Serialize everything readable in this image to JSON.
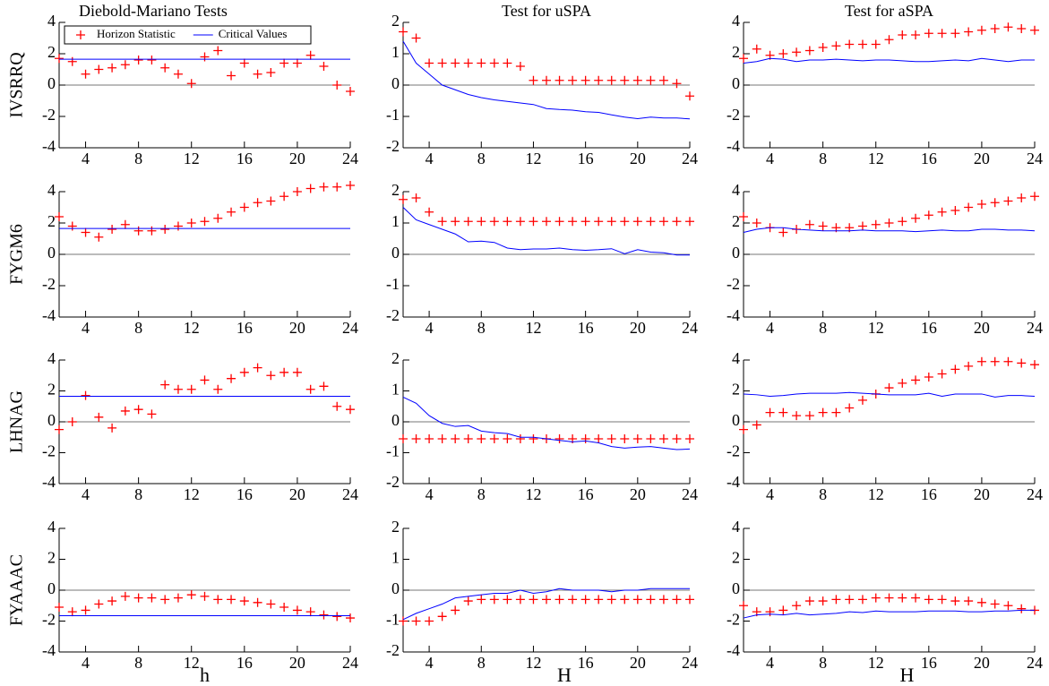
{
  "chart_data": [
    {
      "type": "scatter-line",
      "title": "Diebold-Mariano Tests",
      "ylabel": "IVSRRQ",
      "legend": "top-left",
      "x": [
        2,
        3,
        4,
        5,
        6,
        7,
        8,
        9,
        10,
        11,
        12,
        13,
        14,
        15,
        16,
        17,
        18,
        19,
        20,
        21,
        22,
        23,
        24
      ],
      "xlim": [
        2,
        24
      ],
      "xticks": [
        4,
        8,
        12,
        16,
        20,
        24
      ],
      "ylim": [
        -4,
        4
      ],
      "yticks": [
        -4,
        -2,
        0,
        2,
        4
      ],
      "series": [
        {
          "name": "Horizon Statistic",
          "color": "#ff0000",
          "values": [
            1.7,
            1.5,
            0.7,
            1.0,
            1.1,
            1.3,
            1.6,
            1.6,
            1.1,
            0.7,
            0.1,
            1.8,
            2.2,
            0.6,
            1.4,
            0.7,
            0.8,
            1.4,
            1.4,
            1.9,
            1.2,
            0.0,
            -0.4
          ]
        },
        {
          "name": "Critical Values",
          "color": "#0000ff",
          "values": [
            1.65,
            1.65,
            1.65,
            1.65,
            1.65,
            1.65,
            1.65,
            1.65,
            1.65,
            1.65,
            1.65,
            1.65,
            1.65,
            1.65,
            1.65,
            1.65,
            1.65,
            1.65,
            1.65,
            1.65,
            1.65,
            1.65,
            1.65
          ]
        }
      ]
    },
    {
      "type": "scatter-line",
      "title": "Test for uSPA",
      "x": [
        2,
        3,
        4,
        5,
        6,
        7,
        8,
        9,
        10,
        11,
        12,
        13,
        14,
        15,
        16,
        17,
        18,
        19,
        20,
        21,
        22,
        23,
        24
      ],
      "xlim": [
        2,
        24
      ],
      "xticks": [
        4,
        8,
        12,
        16,
        20,
        24
      ],
      "ylim": [
        -2,
        2
      ],
      "yticks": [
        -2,
        -1,
        0,
        1,
        2
      ],
      "series": [
        {
          "color": "#ff0000",
          "values": [
            1.7,
            1.5,
            0.7,
            0.7,
            0.7,
            0.7,
            0.7,
            0.7,
            0.7,
            0.6,
            0.15,
            0.15,
            0.15,
            0.15,
            0.15,
            0.15,
            0.15,
            0.15,
            0.15,
            0.15,
            0.15,
            0.05,
            -0.35
          ]
        },
        {
          "color": "#0000ff",
          "values": [
            1.4,
            0.7,
            0.35,
            0.0,
            -0.15,
            -0.3,
            -0.4,
            -0.47,
            -0.52,
            -0.57,
            -0.62,
            -0.75,
            -0.78,
            -0.8,
            -0.85,
            -0.87,
            -0.95,
            -1.02,
            -1.07,
            -1.02,
            -1.05,
            -1.05,
            -1.08
          ]
        }
      ]
    },
    {
      "type": "scatter-line",
      "title": "Test for aSPA",
      "x": [
        2,
        3,
        4,
        5,
        6,
        7,
        8,
        9,
        10,
        11,
        12,
        13,
        14,
        15,
        16,
        17,
        18,
        19,
        20,
        21,
        22,
        23,
        24
      ],
      "xlim": [
        2,
        24
      ],
      "xticks": [
        4,
        8,
        12,
        16,
        20,
        24
      ],
      "ylim": [
        -4,
        4
      ],
      "yticks": [
        -4,
        -2,
        0,
        2,
        4
      ],
      "series": [
        {
          "color": "#ff0000",
          "values": [
            1.7,
            2.3,
            1.9,
            2.0,
            2.1,
            2.2,
            2.4,
            2.5,
            2.6,
            2.6,
            2.6,
            2.9,
            3.2,
            3.2,
            3.3,
            3.3,
            3.3,
            3.4,
            3.5,
            3.6,
            3.7,
            3.6,
            3.5
          ]
        },
        {
          "color": "#0000ff",
          "values": [
            1.4,
            1.5,
            1.7,
            1.65,
            1.5,
            1.6,
            1.6,
            1.65,
            1.6,
            1.55,
            1.6,
            1.6,
            1.55,
            1.5,
            1.5,
            1.55,
            1.6,
            1.55,
            1.7,
            1.6,
            1.5,
            1.6,
            1.6
          ]
        }
      ]
    },
    {
      "type": "scatter-line",
      "ylabel": "FYGM6",
      "x": [
        2,
        3,
        4,
        5,
        6,
        7,
        8,
        9,
        10,
        11,
        12,
        13,
        14,
        15,
        16,
        17,
        18,
        19,
        20,
        21,
        22,
        23,
        24
      ],
      "xlim": [
        2,
        24
      ],
      "xticks": [
        4,
        8,
        12,
        16,
        20,
        24
      ],
      "ylim": [
        -4,
        4
      ],
      "yticks": [
        -4,
        -2,
        0,
        2,
        4
      ],
      "series": [
        {
          "color": "#ff0000",
          "values": [
            2.4,
            1.8,
            1.4,
            1.1,
            1.6,
            1.9,
            1.5,
            1.5,
            1.6,
            1.8,
            2.0,
            2.1,
            2.3,
            2.7,
            3.0,
            3.3,
            3.4,
            3.7,
            4.0,
            4.2,
            4.3,
            4.3,
            4.4
          ]
        },
        {
          "color": "#0000ff",
          "values": [
            1.65,
            1.65,
            1.65,
            1.65,
            1.65,
            1.65,
            1.65,
            1.65,
            1.65,
            1.65,
            1.65,
            1.65,
            1.65,
            1.65,
            1.65,
            1.65,
            1.65,
            1.65,
            1.65,
            1.65,
            1.65,
            1.65,
            1.65
          ]
        }
      ]
    },
    {
      "type": "scatter-line",
      "x": [
        2,
        3,
        4,
        5,
        6,
        7,
        8,
        9,
        10,
        11,
        12,
        13,
        14,
        15,
        16,
        17,
        18,
        19,
        20,
        21,
        22,
        23,
        24
      ],
      "xlim": [
        2,
        24
      ],
      "xticks": [
        4,
        8,
        12,
        16,
        20,
        24
      ],
      "ylim": [
        -2,
        2
      ],
      "yticks": [
        -2,
        -1,
        0,
        1,
        2
      ],
      "series": [
        {
          "color": "#ff0000",
          "values": [
            1.75,
            1.8,
            1.35,
            1.05,
            1.05,
            1.05,
            1.05,
            1.05,
            1.05,
            1.05,
            1.05,
            1.05,
            1.05,
            1.05,
            1.05,
            1.05,
            1.05,
            1.05,
            1.05,
            1.05,
            1.05,
            1.05,
            1.05
          ]
        },
        {
          "color": "#0000ff",
          "values": [
            1.5,
            1.1,
            0.95,
            0.8,
            0.65,
            0.4,
            0.42,
            0.38,
            0.2,
            0.15,
            0.17,
            0.17,
            0.2,
            0.15,
            0.13,
            0.15,
            0.18,
            0.02,
            0.15,
            0.07,
            0.05,
            -0.02,
            -0.02
          ]
        }
      ]
    },
    {
      "type": "scatter-line",
      "x": [
        2,
        3,
        4,
        5,
        6,
        7,
        8,
        9,
        10,
        11,
        12,
        13,
        14,
        15,
        16,
        17,
        18,
        19,
        20,
        21,
        22,
        23,
        24
      ],
      "xlim": [
        2,
        24
      ],
      "xticks": [
        4,
        8,
        12,
        16,
        20,
        24
      ],
      "ylim": [
        -4,
        4
      ],
      "yticks": [
        -4,
        -2,
        0,
        2,
        4
      ],
      "series": [
        {
          "color": "#ff0000",
          "values": [
            2.4,
            2.0,
            1.7,
            1.4,
            1.6,
            1.9,
            1.8,
            1.7,
            1.7,
            1.8,
            1.9,
            2.0,
            2.1,
            2.3,
            2.5,
            2.7,
            2.8,
            3.0,
            3.2,
            3.3,
            3.4,
            3.6,
            3.7
          ]
        },
        {
          "color": "#0000ff",
          "values": [
            1.4,
            1.6,
            1.7,
            1.7,
            1.6,
            1.55,
            1.5,
            1.5,
            1.5,
            1.55,
            1.5,
            1.5,
            1.5,
            1.45,
            1.5,
            1.55,
            1.5,
            1.5,
            1.6,
            1.6,
            1.55,
            1.55,
            1.5
          ]
        }
      ]
    },
    {
      "type": "scatter-line",
      "ylabel": "LHNAG",
      "x": [
        2,
        3,
        4,
        5,
        6,
        7,
        8,
        9,
        10,
        11,
        12,
        13,
        14,
        15,
        16,
        17,
        18,
        19,
        20,
        21,
        22,
        23,
        24
      ],
      "xlim": [
        2,
        24
      ],
      "xticks": [
        4,
        8,
        12,
        16,
        20,
        24
      ],
      "ylim": [
        -4,
        4
      ],
      "yticks": [
        -4,
        -2,
        0,
        2,
        4
      ],
      "series": [
        {
          "color": "#ff0000",
          "values": [
            -0.5,
            0.0,
            1.7,
            0.3,
            -0.4,
            0.7,
            0.8,
            0.5,
            2.4,
            2.1,
            2.1,
            2.7,
            2.1,
            2.8,
            3.2,
            3.5,
            3.0,
            3.2,
            3.2,
            2.1,
            2.3,
            1.0,
            0.8
          ]
        },
        {
          "color": "#0000ff",
          "values": [
            1.65,
            1.65,
            1.65,
            1.65,
            1.65,
            1.65,
            1.65,
            1.65,
            1.65,
            1.65,
            1.65,
            1.65,
            1.65,
            1.65,
            1.65,
            1.65,
            1.65,
            1.65,
            1.65,
            1.65,
            1.65,
            1.65,
            1.65
          ]
        }
      ]
    },
    {
      "type": "scatter-line",
      "x": [
        2,
        3,
        4,
        5,
        6,
        7,
        8,
        9,
        10,
        11,
        12,
        13,
        14,
        15,
        16,
        17,
        18,
        19,
        20,
        21,
        22,
        23,
        24
      ],
      "xlim": [
        2,
        24
      ],
      "xticks": [
        4,
        8,
        12,
        16,
        20,
        24
      ],
      "ylim": [
        -2,
        2
      ],
      "yticks": [
        -2,
        -1,
        0,
        1,
        2
      ],
      "series": [
        {
          "color": "#ff0000",
          "values": [
            -0.55,
            -0.55,
            -0.55,
            -0.55,
            -0.55,
            -0.55,
            -0.55,
            -0.55,
            -0.55,
            -0.55,
            -0.55,
            -0.55,
            -0.55,
            -0.55,
            -0.55,
            -0.55,
            -0.55,
            -0.55,
            -0.55,
            -0.55,
            -0.55,
            -0.55,
            -0.55
          ]
        },
        {
          "color": "#0000ff",
          "values": [
            0.8,
            0.6,
            0.2,
            -0.05,
            -0.15,
            -0.12,
            -0.3,
            -0.35,
            -0.38,
            -0.5,
            -0.5,
            -0.55,
            -0.6,
            -0.65,
            -0.62,
            -0.68,
            -0.8,
            -0.85,
            -0.82,
            -0.8,
            -0.85,
            -0.9,
            -0.88
          ]
        }
      ]
    },
    {
      "type": "scatter-line",
      "x": [
        2,
        3,
        4,
        5,
        6,
        7,
        8,
        9,
        10,
        11,
        12,
        13,
        14,
        15,
        16,
        17,
        18,
        19,
        20,
        21,
        22,
        23,
        24
      ],
      "xlim": [
        2,
        24
      ],
      "xticks": [
        4,
        8,
        12,
        16,
        20,
        24
      ],
      "ylim": [
        -4,
        4
      ],
      "yticks": [
        -4,
        -2,
        0,
        2,
        4
      ],
      "series": [
        {
          "color": "#ff0000",
          "values": [
            -0.5,
            -0.2,
            0.6,
            0.6,
            0.4,
            0.4,
            0.6,
            0.6,
            0.9,
            1.4,
            1.8,
            2.2,
            2.5,
            2.7,
            2.9,
            3.1,
            3.4,
            3.6,
            3.9,
            3.9,
            3.9,
            3.8,
            3.7
          ]
        },
        {
          "color": "#0000ff",
          "values": [
            1.8,
            1.75,
            1.65,
            1.7,
            1.8,
            1.85,
            1.85,
            1.85,
            1.9,
            1.85,
            1.8,
            1.75,
            1.75,
            1.75,
            1.85,
            1.65,
            1.8,
            1.8,
            1.8,
            1.6,
            1.7,
            1.7,
            1.65
          ]
        }
      ]
    },
    {
      "type": "scatter-line",
      "ylabel": "FYAAAC",
      "xlabel": "h",
      "x": [
        2,
        3,
        4,
        5,
        6,
        7,
        8,
        9,
        10,
        11,
        12,
        13,
        14,
        15,
        16,
        17,
        18,
        19,
        20,
        21,
        22,
        23,
        24
      ],
      "xlim": [
        2,
        24
      ],
      "xticks": [
        4,
        8,
        12,
        16,
        20,
        24
      ],
      "ylim": [
        -4,
        4
      ],
      "yticks": [
        -4,
        -2,
        0,
        2,
        4
      ],
      "series": [
        {
          "color": "#ff0000",
          "values": [
            -1.1,
            -1.4,
            -1.3,
            -0.9,
            -0.7,
            -0.4,
            -0.5,
            -0.5,
            -0.6,
            -0.5,
            -0.3,
            -0.4,
            -0.6,
            -0.6,
            -0.7,
            -0.8,
            -0.9,
            -1.1,
            -1.3,
            -1.4,
            -1.6,
            -1.7,
            -1.8
          ]
        },
        {
          "color": "#0000ff",
          "values": [
            -1.65,
            -1.65,
            -1.65,
            -1.65,
            -1.65,
            -1.65,
            -1.65,
            -1.65,
            -1.65,
            -1.65,
            -1.65,
            -1.65,
            -1.65,
            -1.65,
            -1.65,
            -1.65,
            -1.65,
            -1.65,
            -1.65,
            -1.65,
            -1.65,
            -1.65,
            -1.65
          ]
        }
      ]
    },
    {
      "type": "scatter-line",
      "xlabel": "H",
      "x": [
        2,
        3,
        4,
        5,
        6,
        7,
        8,
        9,
        10,
        11,
        12,
        13,
        14,
        15,
        16,
        17,
        18,
        19,
        20,
        21,
        22,
        23,
        24
      ],
      "xlim": [
        2,
        24
      ],
      "xticks": [
        4,
        8,
        12,
        16,
        20,
        24
      ],
      "ylim": [
        -2,
        2
      ],
      "yticks": [
        -2,
        -1,
        0,
        1,
        2
      ],
      "series": [
        {
          "color": "#ff0000",
          "values": [
            -1.0,
            -1.0,
            -1.0,
            -0.85,
            -0.65,
            -0.35,
            -0.3,
            -0.3,
            -0.3,
            -0.3,
            -0.3,
            -0.3,
            -0.3,
            -0.3,
            -0.3,
            -0.3,
            -0.3,
            -0.3,
            -0.3,
            -0.3,
            -0.3,
            -0.3,
            -0.3
          ]
        },
        {
          "color": "#0000ff",
          "values": [
            -0.95,
            -0.75,
            -0.6,
            -0.45,
            -0.25,
            -0.2,
            -0.15,
            -0.1,
            -0.1,
            0.0,
            -0.1,
            -0.05,
            0.05,
            0.0,
            0.0,
            0.0,
            -0.05,
            0.0,
            0.0,
            0.05,
            0.05,
            0.05,
            0.05
          ]
        }
      ]
    },
    {
      "type": "scatter-line",
      "xlabel": "H",
      "x": [
        2,
        3,
        4,
        5,
        6,
        7,
        8,
        9,
        10,
        11,
        12,
        13,
        14,
        15,
        16,
        17,
        18,
        19,
        20,
        21,
        22,
        23,
        24
      ],
      "xlim": [
        2,
        24
      ],
      "xticks": [
        4,
        8,
        12,
        16,
        20,
        24
      ],
      "ylim": [
        -4,
        4
      ],
      "yticks": [
        -4,
        -2,
        0,
        2,
        4
      ],
      "series": [
        {
          "color": "#ff0000",
          "values": [
            -1.0,
            -1.4,
            -1.4,
            -1.3,
            -1.0,
            -0.7,
            -0.7,
            -0.6,
            -0.6,
            -0.6,
            -0.5,
            -0.5,
            -0.5,
            -0.5,
            -0.6,
            -0.6,
            -0.7,
            -0.7,
            -0.8,
            -0.9,
            -1.0,
            -1.2,
            -1.3
          ]
        },
        {
          "color": "#0000ff",
          "values": [
            -1.8,
            -1.6,
            -1.55,
            -1.6,
            -1.5,
            -1.6,
            -1.55,
            -1.5,
            -1.4,
            -1.45,
            -1.35,
            -1.4,
            -1.4,
            -1.4,
            -1.35,
            -1.35,
            -1.35,
            -1.4,
            -1.4,
            -1.35,
            -1.35,
            -1.3,
            -1.3
          ]
        }
      ]
    }
  ]
}
